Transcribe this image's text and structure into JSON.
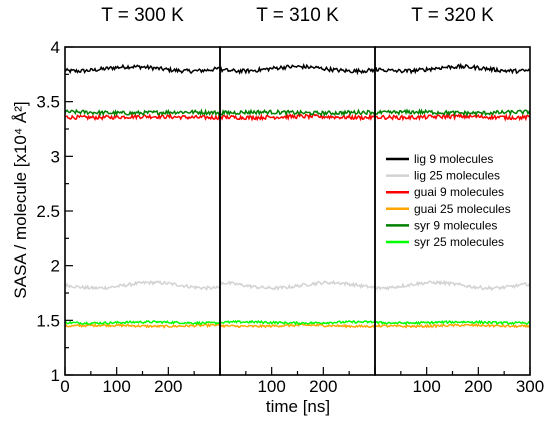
{
  "chart_data": {
    "type": "line",
    "panels": [
      {
        "title": "T = 300 K",
        "xlim": [
          0,
          300
        ]
      },
      {
        "title": "T = 310 K",
        "xlim": [
          0,
          300
        ]
      },
      {
        "title": "T = 320 K",
        "xlim": [
          0,
          300
        ]
      }
    ],
    "xlabel": "time [ns]",
    "ylabel": "SASA / molecule [x10⁴ Å²]",
    "ylim": [
      1,
      4
    ],
    "yticks": [
      "1",
      "1.5",
      "2",
      "2.5",
      "3",
      "3.5",
      "4"
    ],
    "xticks": [
      "0",
      "100",
      "200",
      "300"
    ],
    "series": [
      {
        "name": "lig 9 molecules",
        "color": "#000000",
        "mean": 3.8,
        "noise": 0.018,
        "drift": 0.02
      },
      {
        "name": "lig 25 molecules",
        "color": "#d3d3d3",
        "mean": 1.82,
        "noise": 0.015,
        "drift": 0.025
      },
      {
        "name": "guai 9 molecules",
        "color": "#ff0000",
        "mean": 3.36,
        "noise": 0.018,
        "drift": 0.005
      },
      {
        "name": "guai 25 molecules",
        "color": "#ffa500",
        "mean": 1.45,
        "noise": 0.01,
        "drift": 0.005
      },
      {
        "name": "syr 9 molecules",
        "color": "#008000",
        "mean": 3.4,
        "noise": 0.018,
        "drift": 0.005
      },
      {
        "name": "syr 25 molecules",
        "color": "#00ff00",
        "mean": 1.48,
        "noise": 0.01,
        "drift": 0.005
      }
    ],
    "legend": "right, inside third panel",
    "grid": false
  }
}
